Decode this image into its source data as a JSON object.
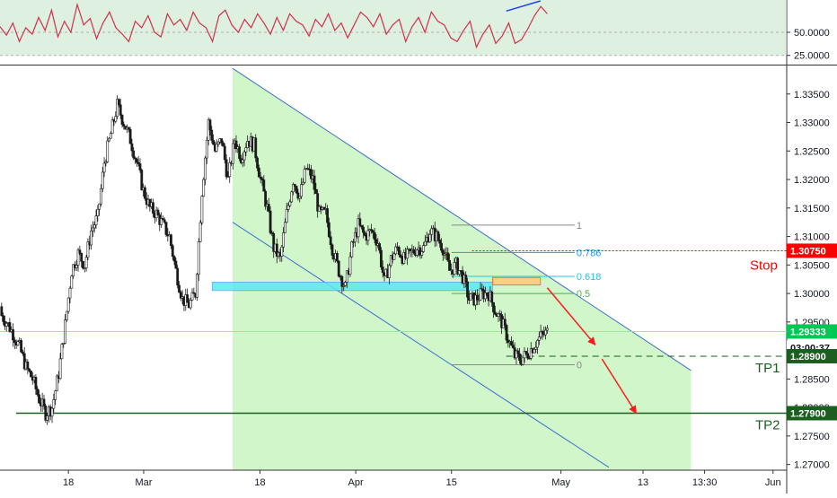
{
  "chart_data": {
    "type": "candlestick",
    "panels": [
      {
        "name": "oscillator",
        "y_ticks": [
          "50.0000",
          "25.0000"
        ],
        "y_range": [
          15,
          85
        ],
        "overbought_band": [
          25,
          85
        ],
        "series": [
          {
            "values": [
              56,
              47,
              60,
              40,
              55,
              48,
              66,
              52,
              74,
              45,
              62,
              50,
              80,
              58,
              65,
              43,
              60,
              72,
              55,
              48,
              40,
              62,
              55,
              68,
              50,
              45,
              70,
              58,
              64,
              52,
              72,
              60,
              55,
              40,
              68,
              74,
              58,
              50,
              64,
              55,
              70,
              60,
              48,
              66,
              52,
              70,
              62,
              58,
              46,
              64,
              56,
              70,
              52,
              60,
              44,
              58,
              72,
              66,
              56,
              70,
              48,
              58,
              64,
              40,
              56,
              66,
              50,
              72,
              62,
              58,
              44,
              40,
              52,
              62,
              34,
              48,
              58,
              38,
              46,
              60,
              38,
              42,
              54,
              68,
              78,
              70
            ]
          }
        ],
        "divergence_line": {
          "x": [
            "2019-04-23",
            "2019-04-28"
          ],
          "y": [
            73,
            84
          ]
        }
      },
      {
        "name": "price",
        "y_ticks": [
          "1.33500",
          "1.33000",
          "1.32500",
          "1.32000",
          "1.31500",
          "1.31000",
          "1.30500",
          "1.30000",
          "1.29500",
          "1.29000",
          "1.28500",
          "1.28000",
          "1.27500",
          "1.27000"
        ],
        "y_range": [
          1.269,
          1.34
        ],
        "x_ticks": [
          {
            "label": "18",
            "date": "2019-02-18"
          },
          {
            "label": "Mar",
            "date": "2019-03-01"
          },
          {
            "label": "18",
            "date": "2019-03-18"
          },
          {
            "label": "Apr",
            "date": "2019-04-01"
          },
          {
            "label": "15",
            "date": "2019-04-15"
          },
          {
            "label": "May",
            "date": "2019-05-01"
          },
          {
            "label": "13",
            "date": "2019-05-13"
          },
          {
            "label": "13:30",
            "date": "2019-05-22"
          },
          {
            "label": "Jun",
            "date": "2019-06-01"
          }
        ],
        "x_range": [
          "2019-02-08",
          "2019-06-03"
        ],
        "closes": [
          1.2965,
          1.295,
          1.293,
          1.2905,
          1.287,
          1.285,
          1.2815,
          1.279,
          1.28,
          1.286,
          1.2945,
          1.304,
          1.307,
          1.305,
          1.311,
          1.3135,
          1.323,
          1.328,
          1.333,
          1.33,
          1.327,
          1.323,
          1.318,
          1.315,
          1.314,
          1.312,
          1.31,
          1.304,
          1.299,
          1.298,
          1.3,
          1.318,
          1.33,
          1.325,
          1.327,
          1.32,
          1.327,
          1.324,
          1.327,
          1.326,
          1.32,
          1.315,
          1.308,
          1.306,
          1.314,
          1.32,
          1.317,
          1.322,
          1.32,
          1.314,
          1.314,
          1.308,
          1.304,
          1.301,
          1.308,
          1.312,
          1.31,
          1.311,
          1.309,
          1.302,
          1.306,
          1.308,
          1.306,
          1.307,
          1.308,
          1.308,
          1.311,
          1.31,
          1.308,
          1.304,
          1.305,
          1.303,
          1.299,
          1.299,
          1.3,
          1.3,
          1.297,
          1.295,
          1.292,
          1.289,
          1.2885,
          1.2895,
          1.291,
          1.2925,
          1.2932
        ],
        "channel": {
          "upper": {
            "x": [
              "2019-03-14",
              "2019-05-20"
            ],
            "y": [
              1.3395,
              1.2865
            ]
          },
          "lower": {
            "x": [
              "2019-03-14",
              "2019-05-08"
            ],
            "y": [
              1.3125,
              1.2695
            ]
          },
          "fill_until": "2019-05-20"
        },
        "support_zone": {
          "x": [
            "2019-03-11",
            "2019-04-21"
          ],
          "y": [
            1.3005,
            1.302
          ]
        },
        "entry_zone": {
          "x": [
            "2019-04-21",
            "2019-04-28"
          ],
          "y": [
            1.3015,
            1.3028
          ]
        },
        "fibonacci": {
          "x": [
            "2019-04-15",
            "2019-05-03"
          ],
          "levels": [
            {
              "label": "1",
              "value": 1.312,
              "color": "#888888"
            },
            {
              "label": "0.786",
              "value": 1.3072,
              "color": "#2196f3"
            },
            {
              "label": "0.618",
              "value": 1.303,
              "color": "#26c6da"
            },
            {
              "label": "0.5",
              "value": 1.3,
              "color": "#4caf50"
            },
            {
              "label": "0",
              "value": 1.2875,
              "color": "#888888"
            }
          ]
        },
        "stop_line": {
          "value": 1.3075,
          "label": "Stop",
          "tag": "1.30750",
          "color": "#ff0000"
        },
        "tp1_line": {
          "value": 1.289,
          "label": "TP1",
          "tag": "1.28900",
          "color": "#1b5e20"
        },
        "tp2_line": {
          "value": 1.279,
          "label": "TP2",
          "tag": "1.27900",
          "color": "#1b5e20"
        },
        "current_price": {
          "value": 1.29333,
          "tag": "1.29333",
          "countdown": "03:00:37",
          "color": "#00c853"
        },
        "projection_arrows": [
          {
            "x": [
              "2019-04-29",
              "2019-05-06"
            ],
            "y": [
              1.301,
              1.291
            ]
          },
          {
            "x": [
              "2019-05-07",
              "2019-05-12"
            ],
            "y": [
              1.2885,
              1.279
            ]
          }
        ]
      }
    ]
  }
}
